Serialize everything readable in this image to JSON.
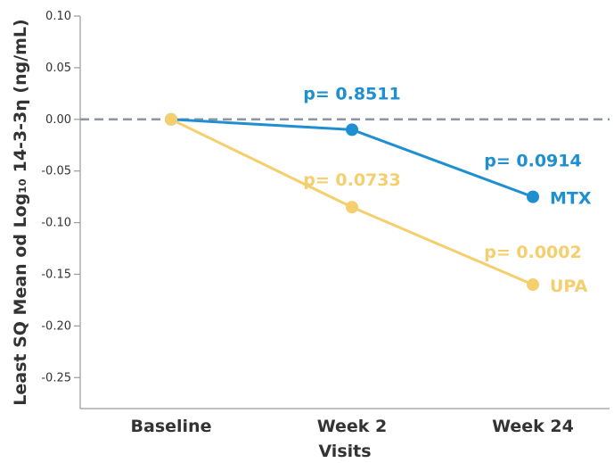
{
  "chart_data": {
    "type": "line",
    "categories": [
      "Baseline",
      "Week 2",
      "Week 24"
    ],
    "xlabel": "Visits",
    "ylabel": "Least SQ Mean od Log₁₀ 14-3-3η (ng/mL)",
    "ylim": [
      -0.28,
      0.1
    ],
    "yticks": [
      0.1,
      0.05,
      0.0,
      -0.05,
      -0.1,
      -0.15,
      -0.2,
      -0.25
    ],
    "ytick_labels": [
      "0.10",
      "0.05",
      "0.00",
      "-0.05",
      "-0.10",
      "-0.15",
      "-0.20",
      "-0.25"
    ],
    "reference_line": 0.0,
    "series": [
      {
        "name": "MTX",
        "color": "#1e8fd0",
        "values": [
          0.0,
          -0.01,
          -0.075
        ],
        "annotations": [
          "",
          "p= 0.8511",
          "p= 0.0914"
        ]
      },
      {
        "name": "UPA",
        "color": "#f5cf6e",
        "values": [
          0.0,
          -0.085,
          -0.16
        ],
        "annotations": [
          "",
          "p= 0.0733",
          "p= 0.0002"
        ]
      }
    ]
  }
}
